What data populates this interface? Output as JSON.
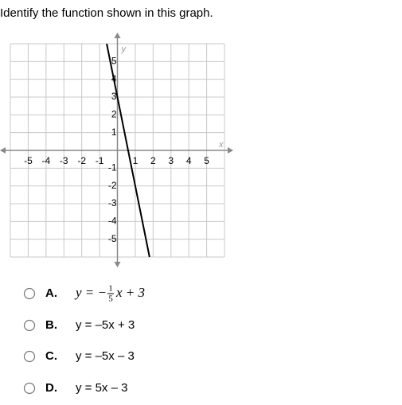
{
  "question": "Identify the function shown in this graph.",
  "chart_data": {
    "type": "line",
    "x": [
      -0.6,
      1.8
    ],
    "series": [
      {
        "values": [
          6,
          -6
        ],
        "color": "#000000"
      }
    ],
    "xlim": [
      -6,
      6
    ],
    "ylim": [
      -6,
      6
    ],
    "xticks": [
      -5,
      -4,
      -3,
      -2,
      -1,
      1,
      2,
      3,
      4,
      5
    ],
    "yticks": [
      -5,
      -4,
      -3,
      -2,
      -1,
      1,
      2,
      3,
      4,
      5
    ],
    "xlabel": "x",
    "ylabel": "y",
    "grid": true
  },
  "options": [
    {
      "letter": "A.",
      "before": "y = −",
      "numerator": "1",
      "denominator": "5",
      "after": "x + 3"
    },
    {
      "letter": "B.",
      "text": "y = –5x + 3"
    },
    {
      "letter": "C.",
      "text": "y = –5x – 3"
    },
    {
      "letter": "D.",
      "text": "y = 5x – 3"
    }
  ]
}
